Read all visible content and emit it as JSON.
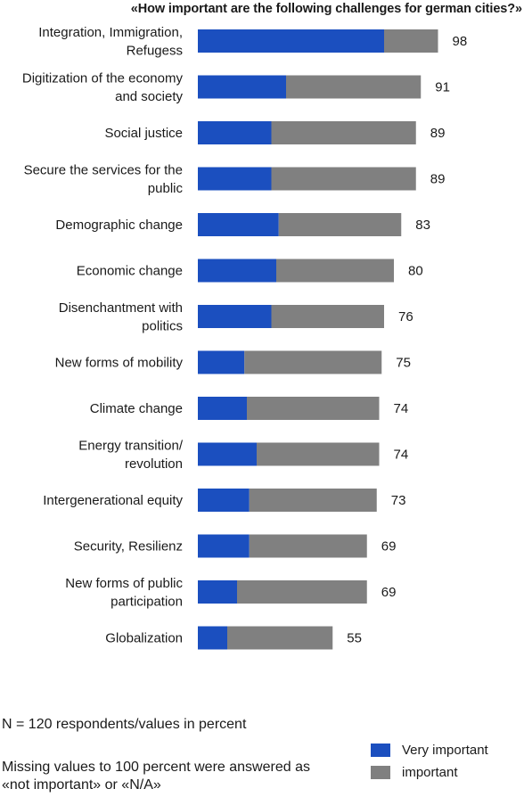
{
  "chart_data": {
    "type": "bar",
    "orientation": "horizontal",
    "stacked": true,
    "title": "«How important are the following challenges for german cities?»",
    "categories": [
      [
        "Integration, Immigration,",
        "Refugess"
      ],
      [
        "Digitization of the economy",
        "and society"
      ],
      [
        "Social justice"
      ],
      [
        "Secure the services for the",
        "public"
      ],
      [
        "Demographic change"
      ],
      [
        "Economic change"
      ],
      [
        "Disenchantment with",
        "politics"
      ],
      [
        "New forms of mobility"
      ],
      [
        "Climate change"
      ],
      [
        "Energy transition/",
        "revolution"
      ],
      [
        "Intergenerational equity"
      ],
      [
        "Security, Resilienz"
      ],
      [
        "New forms of public",
        "participation"
      ],
      [
        "Globalization"
      ]
    ],
    "series": [
      {
        "name": "Very important",
        "color": "#1b4fbf",
        "values": [
          76,
          36,
          30,
          30,
          33,
          32,
          30,
          19,
          20,
          24,
          21,
          21,
          16,
          12
        ]
      },
      {
        "name": "important",
        "color": "#808080",
        "values": [
          22,
          55,
          59,
          59,
          50,
          48,
          46,
          56,
          54,
          50,
          52,
          48,
          53,
          43
        ]
      }
    ],
    "totals": [
      98,
      91,
      89,
      89,
      83,
      80,
      76,
      75,
      74,
      74,
      73,
      69,
      69,
      55
    ],
    "xlim": [
      0,
      100
    ],
    "legend": "bottom-right"
  },
  "note": "N = 120 respondents/values in percent",
  "missing_note": "Missing values to 100 percent were answered as «not important» or «N/A»"
}
